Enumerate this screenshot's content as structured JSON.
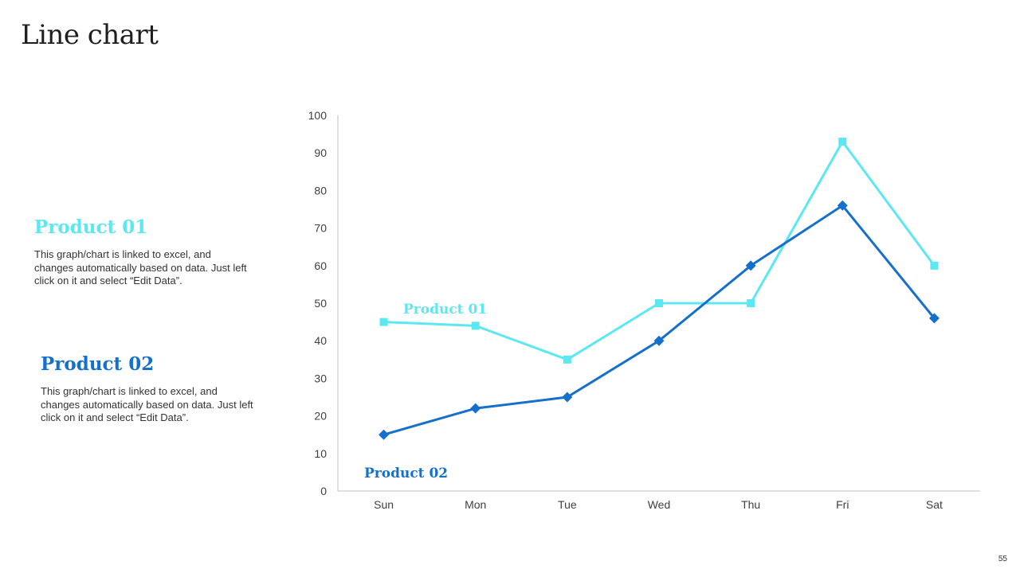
{
  "slide": {
    "title": "Line chart",
    "page_number": "55"
  },
  "legend": [
    {
      "heading": "Product 01",
      "description": "This graph/chart is linked to excel, and changes automatically based on data. Just left click on it and select “Edit Data”.",
      "color": "#5CE8F0"
    },
    {
      "heading": "Product 02",
      "description": "This graph/chart is linked to excel, and changes automatically based on data. Just left click on it and select “Edit Data”.",
      "color": "#1570CC"
    }
  ],
  "chart_data": {
    "type": "line",
    "title": "",
    "xlabel": "",
    "ylabel": "",
    "categories": [
      "Sun",
      "Mon",
      "Tue",
      "Wed",
      "Thu",
      "Fri",
      "Sat"
    ],
    "ylim": [
      0,
      100
    ],
    "yticks": [
      0,
      10,
      20,
      30,
      40,
      50,
      60,
      70,
      80,
      90,
      100
    ],
    "grid": false,
    "series": [
      {
        "name": "Product 01",
        "marker": "square",
        "color": "#5CE8F0",
        "values": [
          45,
          44,
          35,
          50,
          50,
          93,
          60
        ]
      },
      {
        "name": "Product 02",
        "marker": "diamond",
        "color": "#1570CC",
        "values": [
          15,
          22,
          25,
          40,
          60,
          76,
          46
        ]
      }
    ]
  }
}
